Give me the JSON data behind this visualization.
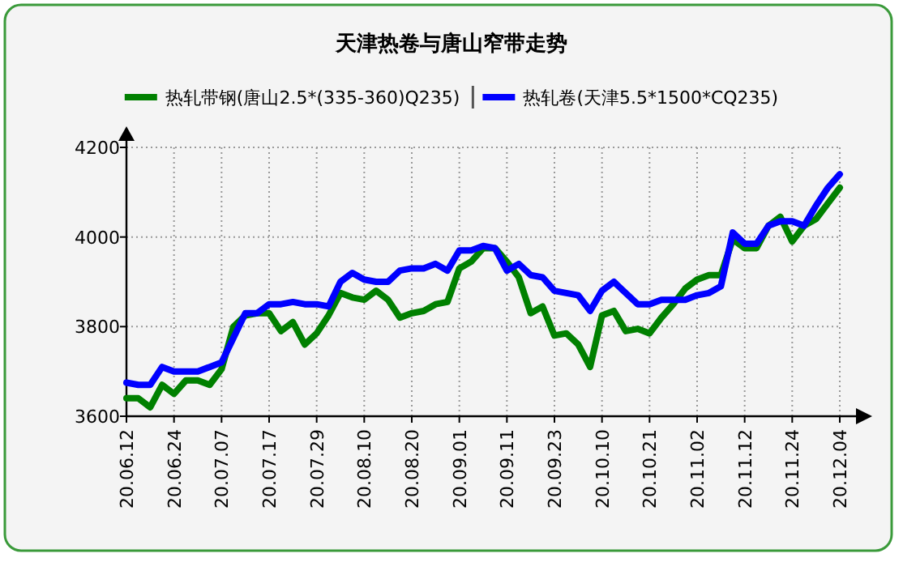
{
  "chart_data": {
    "type": "line",
    "title": "天津热卷与唐山窄带走势",
    "categories": [
      "20.06.12",
      null,
      null,
      null,
      "20.06.24",
      null,
      null,
      null,
      "20.07.07",
      null,
      null,
      null,
      "20.07.17",
      null,
      null,
      null,
      "20.07.29",
      null,
      null,
      null,
      "20.08.10",
      null,
      null,
      null,
      "20.08.20",
      null,
      null,
      null,
      "20.09.01",
      null,
      null,
      null,
      "20.09.11",
      null,
      null,
      null,
      "20.09.23",
      null,
      null,
      null,
      "20.10.10",
      null,
      null,
      null,
      "20.10.21",
      null,
      null,
      null,
      "20.11.02",
      null,
      null,
      null,
      "20.11.12",
      null,
      null,
      null,
      "20.11.24",
      null,
      null,
      null,
      "20.12.04"
    ],
    "series": [
      {
        "name": "热轧带钢(唐山2.5*(335-360)Q235)",
        "color": "#008000",
        "values": [
          3640,
          3640,
          3620,
          3670,
          3650,
          3680,
          3680,
          3670,
          3705,
          3800,
          3825,
          3830,
          3830,
          3790,
          3810,
          3760,
          3785,
          3825,
          3875,
          3865,
          3860,
          3880,
          3860,
          3820,
          3830,
          3835,
          3850,
          3855,
          3930,
          3945,
          3975,
          3975,
          3945,
          3910,
          3830,
          3845,
          3780,
          3785,
          3760,
          3710,
          3825,
          3835,
          3790,
          3795,
          3785,
          3820,
          3850,
          3885,
          3905,
          3915,
          3915,
          3995,
          3975,
          3975,
          4025,
          4045,
          3990,
          4025,
          4040,
          4075,
          4110
        ]
      },
      {
        "name": "热轧卷(天津5.5*1500*CQ235)",
        "color": "#0000ff",
        "values": [
          3675,
          3670,
          3670,
          3710,
          3700,
          3700,
          3700,
          3710,
          3720,
          3775,
          3830,
          3830,
          3850,
          3850,
          3855,
          3850,
          3850,
          3845,
          3900,
          3920,
          3905,
          3900,
          3900,
          3925,
          3930,
          3930,
          3940,
          3925,
          3970,
          3970,
          3980,
          3975,
          3925,
          3940,
          3915,
          3910,
          3880,
          3875,
          3870,
          3835,
          3880,
          3900,
          3875,
          3850,
          3850,
          3860,
          3860,
          3860,
          3870,
          3875,
          3890,
          4010,
          3985,
          3985,
          4025,
          4035,
          4035,
          4025,
          4070,
          4110,
          4140
        ]
      }
    ],
    "ylim": [
      3600,
      4200
    ],
    "yticks": [
      3600,
      3800,
      4000,
      4200
    ],
    "grid": true,
    "legend": "top",
    "marker": "none",
    "line_style": "solid"
  }
}
